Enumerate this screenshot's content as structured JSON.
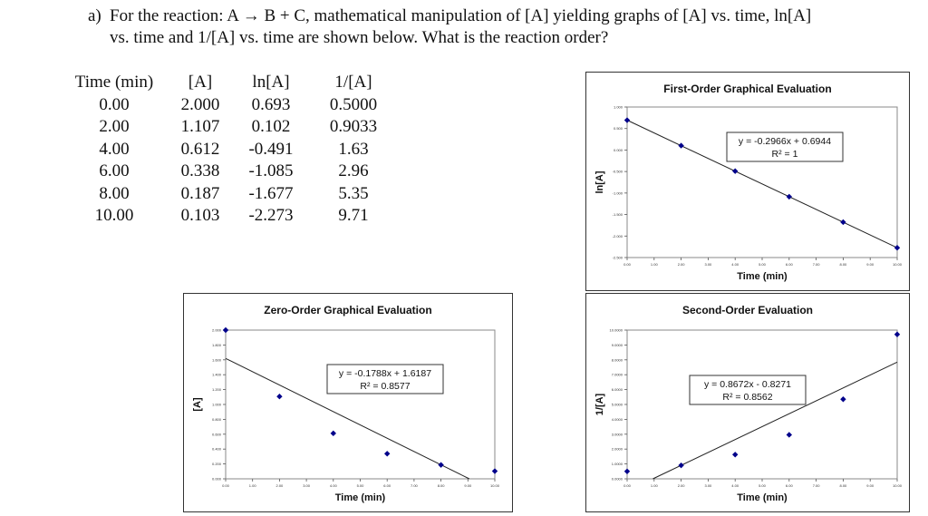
{
  "question": {
    "label": "a)",
    "line1": "For the reaction: A → B + C, mathematical manipulation of [A] yielding graphs of [A] vs. time, ln[A]",
    "line2": "vs. time and 1/[A] vs. time are shown below. What is the reaction order?"
  },
  "table": {
    "headers": [
      "Time (min)",
      "[A]",
      "ln[A]",
      "1/[A]"
    ],
    "rows": [
      [
        "0.00",
        "2.000",
        "0.693",
        "0.5000"
      ],
      [
        "2.00",
        "1.107",
        "0.102",
        "0.9033"
      ],
      [
        "4.00",
        "0.612",
        "-0.491",
        "1.63"
      ],
      [
        "6.00",
        "0.338",
        "-1.085",
        "2.96"
      ],
      [
        "8.00",
        "0.187",
        "-1.677",
        "5.35"
      ],
      [
        "10.00",
        "0.103",
        "-2.273",
        "9.71"
      ]
    ]
  },
  "chart_data": [
    {
      "type": "scatter",
      "title": "First-Order Graphical Evaluation",
      "xlabel": "Time (min)",
      "ylabel": "ln[A]",
      "x": [
        0,
        2,
        4,
        6,
        8,
        10
      ],
      "y": [
        0.693,
        0.102,
        -0.491,
        -1.085,
        -1.677,
        -2.273
      ],
      "xlim": [
        0,
        10
      ],
      "ylim": [
        -2.5,
        1.0
      ],
      "xticks": [
        "0.00",
        "1.00",
        "2.00",
        "3.00",
        "4.00",
        "5.00",
        "6.00",
        "7.00",
        "8.00",
        "9.00",
        "10.00"
      ],
      "yticks": [
        "1.000",
        "0.500",
        "0.000",
        "-0.500",
        "-1.000",
        "-1.500",
        "-2.000",
        "-2.500"
      ],
      "trendline": {
        "slope": -0.2966,
        "intercept": 0.6944
      },
      "equation": "y = -0.2966x + 0.6944",
      "r2": "R² = 1",
      "marker_color": "#00008b",
      "grid": false
    },
    {
      "type": "scatter",
      "title": "Zero-Order Graphical Evaluation",
      "xlabel": "Time (min)",
      "ylabel": "[A]",
      "x": [
        0,
        2,
        4,
        6,
        8,
        10
      ],
      "y": [
        2.0,
        1.107,
        0.612,
        0.338,
        0.187,
        0.103
      ],
      "xlim": [
        0,
        10
      ],
      "ylim": [
        0,
        2.0
      ],
      "xticks": [
        "0.00",
        "1.00",
        "2.00",
        "3.00",
        "4.00",
        "5.00",
        "6.00",
        "7.00",
        "8.00",
        "9.00",
        "10.00"
      ],
      "yticks": [
        "2.000",
        "1.800",
        "1.600",
        "1.400",
        "1.200",
        "1.000",
        "0.800",
        "0.600",
        "0.400",
        "0.200",
        "0.000"
      ],
      "trendline": {
        "slope": -0.1788,
        "intercept": 1.6187
      },
      "equation": "y = -0.1788x + 1.6187",
      "r2": "R² = 0.8577",
      "marker_color": "#00008b",
      "grid": false
    },
    {
      "type": "scatter",
      "title": "Second-Order Evaluation",
      "xlabel": "Time (min)",
      "ylabel": "1/[A]",
      "x": [
        0,
        2,
        4,
        6,
        8,
        10
      ],
      "y": [
        0.5,
        0.9033,
        1.63,
        2.96,
        5.35,
        9.71
      ],
      "xlim": [
        0,
        10
      ],
      "ylim": [
        0,
        10
      ],
      "xticks": [
        "0.00",
        "1.00",
        "2.00",
        "3.00",
        "4.00",
        "5.00",
        "6.00",
        "7.00",
        "8.00",
        "9.00",
        "10.00"
      ],
      "yticks": [
        "10.0000",
        "9.0000",
        "8.0000",
        "7.0000",
        "6.0000",
        "5.0000",
        "4.0000",
        "3.0000",
        "2.0000",
        "1.0000",
        "0.0000"
      ],
      "trendline": {
        "slope": 0.8672,
        "intercept": -0.8271
      },
      "equation": "y = 0.8672x - 0.8271",
      "r2": "R² = 0.8562",
      "marker_color": "#00008b",
      "grid": false
    }
  ]
}
